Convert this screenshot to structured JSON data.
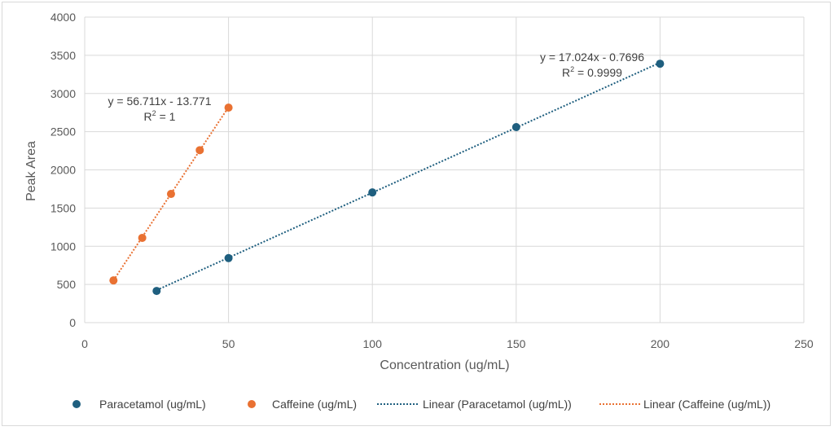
{
  "chart_data": {
    "type": "scatter",
    "title": "",
    "xlabel": "Concentration (ug/mL)",
    "ylabel": "Peak Area",
    "xlim": [
      0,
      250
    ],
    "ylim": [
      0,
      4000
    ],
    "xticks": [
      0,
      50,
      100,
      150,
      200,
      250
    ],
    "yticks": [
      0,
      500,
      1000,
      1500,
      2000,
      2500,
      3000,
      3500,
      4000
    ],
    "grid": true,
    "legend_position": "bottom",
    "series": [
      {
        "name": "Paracetamol (ug/mL)",
        "color": "#1f5f7f",
        "x": [
          25,
          50,
          100,
          150,
          200
        ],
        "y": [
          415,
          845,
          1705,
          2560,
          3390
        ],
        "trendline": {
          "name": "Linear (Paracetamol (ug/mL))",
          "slope": 17.024,
          "intercept": -0.7696,
          "equation": "y = 17.024x - 0.7696",
          "r2_label": "R",
          "r2_sup": "2",
          "r2_value": " = 0.9999"
        }
      },
      {
        "name": "Caffeine (ug/mL)",
        "color": "#e97132",
        "x": [
          10,
          20,
          30,
          40,
          50
        ],
        "y": [
          553,
          1110,
          1685,
          2258,
          2815
        ],
        "trendline": {
          "name": "Linear (Caffeine (ug/mL))",
          "slope": 56.711,
          "intercept": -13.771,
          "equation": "y = 56.711x - 13.771",
          "r2_label": "R",
          "r2_sup": "2",
          "r2_value": " = 1"
        }
      }
    ]
  }
}
